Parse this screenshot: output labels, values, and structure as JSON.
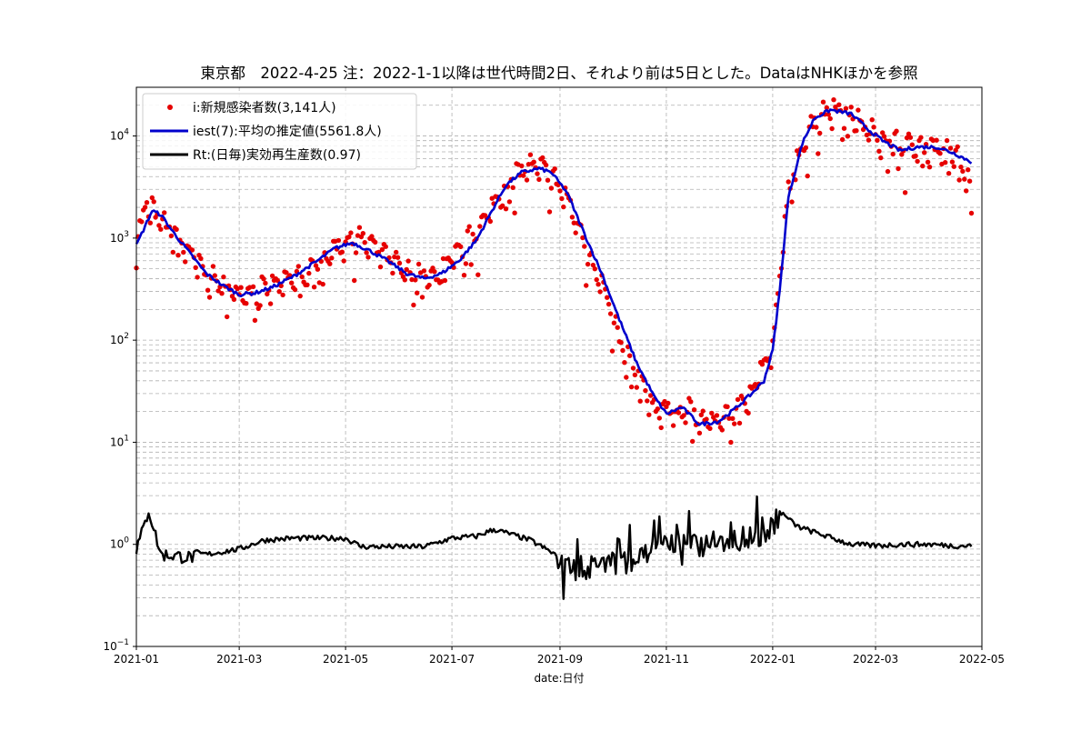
{
  "chart_data": {
    "type": "scatter",
    "title": "東京都　2022-4-25 注：2022-1-1以降は世代時間2日、それより前は5日とした。DataはNHKほかを参照",
    "xlabel": "date:日付",
    "ylabel": "",
    "yscale": "log",
    "ylim": [
      0.1,
      30000
    ],
    "xlim": [
      "2021-01-01",
      "2022-05-01"
    ],
    "grid": true,
    "legend_position": "upper-left",
    "x_ticks": [
      "2021-01",
      "2021-03",
      "2021-05",
      "2021-07",
      "2021-09",
      "2021-11",
      "2022-01",
      "2022-03",
      "2022-05"
    ],
    "y_ticks": [
      {
        "value": 0.1,
        "base": "10",
        "exp": "−1"
      },
      {
        "value": 1,
        "base": "10",
        "exp": "0"
      },
      {
        "value": 10,
        "base": "10",
        "exp": "1"
      },
      {
        "value": 100,
        "base": "10",
        "exp": "2"
      },
      {
        "value": 1000,
        "base": "10",
        "exp": "3"
      },
      {
        "value": 10000,
        "base": "10",
        "exp": "4"
      }
    ],
    "series": [
      {
        "name": "i:新規感染者数(3,141人)",
        "kind": "scatter",
        "color": "#e60000",
        "key_points": [
          [
            "2021-01-01",
            800
          ],
          [
            "2021-01-07",
            2400
          ],
          [
            "2021-01-14",
            1500
          ],
          [
            "2021-01-25",
            1000
          ],
          [
            "2021-02-10",
            420
          ],
          [
            "2021-02-25",
            300
          ],
          [
            "2021-03-10",
            300
          ],
          [
            "2021-03-25",
            350
          ],
          [
            "2021-04-10",
            450
          ],
          [
            "2021-04-25",
            800
          ],
          [
            "2021-05-08",
            1000
          ],
          [
            "2021-05-20",
            750
          ],
          [
            "2021-06-05",
            450
          ],
          [
            "2021-06-20",
            400
          ],
          [
            "2021-07-05",
            700
          ],
          [
            "2021-07-20",
            1500
          ],
          [
            "2021-08-01",
            3300
          ],
          [
            "2021-08-13",
            5000
          ],
          [
            "2021-08-25",
            4500
          ],
          [
            "2021-09-05",
            2400
          ],
          [
            "2021-09-15",
            900
          ],
          [
            "2021-09-25",
            350
          ],
          [
            "2021-10-05",
            100
          ],
          [
            "2021-10-15",
            45
          ],
          [
            "2021-10-25",
            22
          ],
          [
            "2021-11-05",
            20
          ],
          [
            "2021-11-15",
            20
          ],
          [
            "2021-11-25",
            16
          ],
          [
            "2021-12-05",
            17
          ],
          [
            "2021-12-15",
            25
          ],
          [
            "2021-12-25",
            50
          ],
          [
            "2022-01-01",
            80
          ],
          [
            "2022-01-05",
            400
          ],
          [
            "2022-01-10",
            3000
          ],
          [
            "2022-01-18",
            8000
          ],
          [
            "2022-01-25",
            14000
          ],
          [
            "2022-02-05",
            19000
          ],
          [
            "2022-02-15",
            16000
          ],
          [
            "2022-02-25",
            11000
          ],
          [
            "2022-03-10",
            8500
          ],
          [
            "2022-03-25",
            7500
          ],
          [
            "2022-04-05",
            7800
          ],
          [
            "2022-04-15",
            7000
          ],
          [
            "2022-04-25",
            3141
          ]
        ]
      },
      {
        "name": "iest(7):平均の推定値(5561.8人)",
        "kind": "line",
        "color": "#0000cc",
        "key_points": [
          [
            "2021-01-01",
            850
          ],
          [
            "2021-01-05",
            1200
          ],
          [
            "2021-01-10",
            1850
          ],
          [
            "2021-01-15",
            1700
          ],
          [
            "2021-01-22",
            1150
          ],
          [
            "2021-02-01",
            700
          ],
          [
            "2021-02-10",
            450
          ],
          [
            "2021-02-20",
            340
          ],
          [
            "2021-03-01",
            280
          ],
          [
            "2021-03-10",
            290
          ],
          [
            "2021-03-20",
            330
          ],
          [
            "2021-04-01",
            420
          ],
          [
            "2021-04-15",
            600
          ],
          [
            "2021-04-25",
            800
          ],
          [
            "2021-05-05",
            900
          ],
          [
            "2021-05-15",
            750
          ],
          [
            "2021-05-25",
            600
          ],
          [
            "2021-06-05",
            450
          ],
          [
            "2021-06-15",
            400
          ],
          [
            "2021-06-25",
            450
          ],
          [
            "2021-07-05",
            600
          ],
          [
            "2021-07-15",
            950
          ],
          [
            "2021-07-25",
            2000
          ],
          [
            "2021-08-01",
            3300
          ],
          [
            "2021-08-10",
            4400
          ],
          [
            "2021-08-20",
            4800
          ],
          [
            "2021-08-27",
            4400
          ],
          [
            "2021-09-05",
            2800
          ],
          [
            "2021-09-15",
            1100
          ],
          [
            "2021-09-25",
            450
          ],
          [
            "2021-10-05",
            160
          ],
          [
            "2021-10-15",
            60
          ],
          [
            "2021-10-25",
            28
          ],
          [
            "2021-11-01",
            19
          ],
          [
            "2021-11-10",
            22
          ],
          [
            "2021-11-20",
            15
          ],
          [
            "2021-12-01",
            16
          ],
          [
            "2021-12-10",
            21
          ],
          [
            "2021-12-20",
            30
          ],
          [
            "2021-12-27",
            40
          ],
          [
            "2022-01-01",
            80
          ],
          [
            "2022-01-05",
            300
          ],
          [
            "2022-01-10",
            2500
          ],
          [
            "2022-01-18",
            8500
          ],
          [
            "2022-01-25",
            15000
          ],
          [
            "2022-02-03",
            18000
          ],
          [
            "2022-02-15",
            16500
          ],
          [
            "2022-02-25",
            11500
          ],
          [
            "2022-03-05",
            9000
          ],
          [
            "2022-03-15",
            7200
          ],
          [
            "2022-03-25",
            7800
          ],
          [
            "2022-04-05",
            7800
          ],
          [
            "2022-04-15",
            6800
          ],
          [
            "2022-04-25",
            5561.8
          ]
        ]
      },
      {
        "name": "Rt:(日毎)実効再生産数(0.97)",
        "kind": "line",
        "color": "#000000",
        "key_points": [
          [
            "2021-01-01",
            0.9
          ],
          [
            "2021-01-06",
            1.6
          ],
          [
            "2021-01-08",
            2.2
          ],
          [
            "2021-01-15",
            0.8
          ],
          [
            "2021-02-01",
            0.75
          ],
          [
            "2021-03-01",
            0.9
          ],
          [
            "2021-03-15",
            1.1
          ],
          [
            "2021-04-01",
            1.15
          ],
          [
            "2021-05-01",
            1.15
          ],
          [
            "2021-05-10",
            0.95
          ],
          [
            "2021-06-01",
            0.95
          ],
          [
            "2021-06-15",
            0.95
          ],
          [
            "2021-07-01",
            1.15
          ],
          [
            "2021-07-15",
            1.2
          ],
          [
            "2021-07-25",
            1.4
          ],
          [
            "2021-08-01",
            1.3
          ],
          [
            "2021-08-15",
            1.1
          ],
          [
            "2021-09-01",
            0.75
          ],
          [
            "2021-09-10",
            0.6
          ],
          [
            "2021-09-25",
            0.65
          ],
          [
            "2021-10-10",
            0.7
          ],
          [
            "2021-10-25",
            0.85
          ],
          [
            "2021-11-01",
            1.0
          ],
          [
            "2021-11-20",
            1.0
          ],
          [
            "2021-12-01",
            1.1
          ],
          [
            "2021-12-15",
            1.2
          ],
          [
            "2021-12-28",
            1.25
          ],
          [
            "2022-01-05",
            2.1
          ],
          [
            "2022-01-15",
            1.5
          ],
          [
            "2022-02-01",
            1.2
          ],
          [
            "2022-02-15",
            1.0
          ],
          [
            "2022-03-01",
            0.97
          ],
          [
            "2022-03-15",
            1.0
          ],
          [
            "2022-04-01",
            1.0
          ],
          [
            "2022-04-15",
            0.97
          ],
          [
            "2022-04-25",
            0.97
          ]
        ]
      }
    ]
  }
}
